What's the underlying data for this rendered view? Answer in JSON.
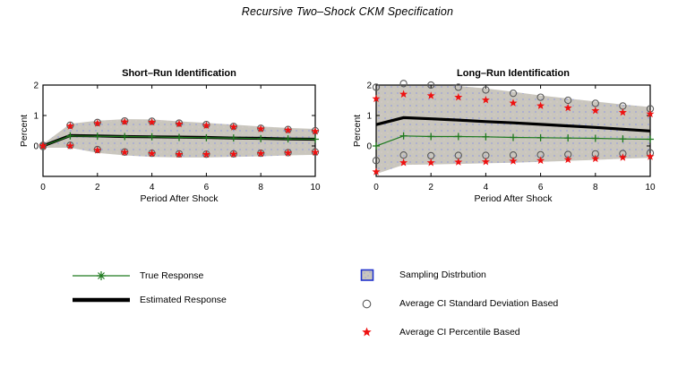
{
  "figure_title": "Recursive Two–Shock CKM Specification",
  "colors": {
    "axis": "#000000",
    "true_response": "#1e7a1e",
    "estimated_response": "#000000",
    "band_fill": "#c9c6bd",
    "band_speckle": "#9aa0dc",
    "band_speckle2": "#d6c9cf",
    "ci_sd_circle": "#5a5a5a",
    "ci_pct_star": "#ee1111",
    "legend_patch_border": "#2233cc"
  },
  "chart_data": [
    {
      "type": "line",
      "title": "Short–Run Identification",
      "xlabel": "Period After Shock",
      "ylabel": "Percent",
      "xlim": [
        0,
        10
      ],
      "ylim": [
        -1,
        2
      ],
      "xticks": [
        0,
        2,
        4,
        6,
        8,
        10
      ],
      "yticks": [
        0,
        1,
        2
      ],
      "grid": false,
      "x": [
        0,
        1,
        2,
        3,
        4,
        5,
        6,
        7,
        8,
        9,
        10
      ],
      "band": {
        "label": "Sampling Distrbution",
        "upper": [
          0.06,
          0.73,
          0.83,
          0.88,
          0.87,
          0.81,
          0.76,
          0.7,
          0.64,
          0.59,
          0.56
        ],
        "lower": [
          -0.06,
          -0.06,
          -0.23,
          -0.31,
          -0.36,
          -0.38,
          -0.38,
          -0.36,
          -0.34,
          -0.31,
          -0.29
        ]
      },
      "series": [
        {
          "name": "True Response",
          "style": "green-line-plus",
          "values": [
            0,
            0.33,
            0.32,
            0.31,
            0.3,
            0.28,
            0.27,
            0.26,
            0.24,
            0.23,
            0.22
          ]
        },
        {
          "name": "Estimated Response",
          "style": "thick-black-line",
          "values": [
            0,
            0.34,
            0.33,
            0.31,
            0.3,
            0.29,
            0.28,
            0.26,
            0.25,
            0.23,
            0.22
          ]
        },
        {
          "name": "Average CI Standard Deviation Based",
          "style": "open-circles",
          "upper": [
            0.02,
            0.68,
            0.77,
            0.82,
            0.81,
            0.75,
            0.7,
            0.64,
            0.58,
            0.54,
            0.5
          ],
          "lower": [
            -0.02,
            0.02,
            -0.12,
            -0.2,
            -0.24,
            -0.26,
            -0.27,
            -0.26,
            -0.24,
            -0.22,
            -0.2
          ]
        },
        {
          "name": "Average CI Percentile Based",
          "style": "red-stars",
          "upper": [
            0.0,
            0.65,
            0.74,
            0.79,
            0.78,
            0.72,
            0.67,
            0.62,
            0.56,
            0.52,
            0.48
          ],
          "lower": [
            0.0,
            0.0,
            -0.14,
            -0.21,
            -0.25,
            -0.28,
            -0.28,
            -0.27,
            -0.25,
            -0.23,
            -0.21
          ]
        }
      ]
    },
    {
      "type": "line",
      "title": "Long–Run Identification",
      "xlabel": "Period After Shock",
      "ylabel": "Percent",
      "xlim": [
        0,
        10
      ],
      "ylim": [
        -1,
        2
      ],
      "xticks": [
        0,
        2,
        4,
        6,
        8,
        10
      ],
      "yticks": [
        0,
        1,
        2
      ],
      "grid": false,
      "x": [
        0,
        1,
        2,
        3,
        4,
        5,
        6,
        7,
        8,
        9,
        10
      ],
      "band": {
        "label": "Sampling Distrbution",
        "upper": [
          1.97,
          2.08,
          2.03,
          1.97,
          1.89,
          1.78,
          1.66,
          1.56,
          1.46,
          1.36,
          1.28
        ],
        "lower": [
          -0.92,
          -0.62,
          -0.61,
          -0.59,
          -0.57,
          -0.55,
          -0.52,
          -0.49,
          -0.46,
          -0.42,
          -0.39
        ]
      },
      "series": [
        {
          "name": "True Response",
          "style": "green-line-plus",
          "values": [
            0,
            0.33,
            0.31,
            0.31,
            0.3,
            0.28,
            0.27,
            0.26,
            0.25,
            0.23,
            0.22
          ]
        },
        {
          "name": "Estimated Response",
          "style": "thick-black-line",
          "values": [
            0.7,
            0.93,
            0.89,
            0.85,
            0.8,
            0.76,
            0.71,
            0.66,
            0.61,
            0.55,
            0.49
          ]
        },
        {
          "name": "Average CI Standard Deviation Based",
          "style": "open-circles",
          "upper": [
            1.93,
            2.05,
            2.0,
            1.93,
            1.84,
            1.73,
            1.6,
            1.5,
            1.4,
            1.31,
            1.22
          ],
          "lower": [
            -0.48,
            -0.3,
            -0.32,
            -0.31,
            -0.31,
            -0.3,
            -0.29,
            -0.28,
            -0.26,
            -0.25,
            -0.23
          ]
        },
        {
          "name": "Average CI Percentile Based",
          "style": "red-stars",
          "upper": [
            1.55,
            1.7,
            1.65,
            1.6,
            1.51,
            1.41,
            1.32,
            1.25,
            1.16,
            1.1,
            1.05
          ],
          "lower": [
            -0.85,
            -0.55,
            -0.55,
            -0.53,
            -0.52,
            -0.5,
            -0.48,
            -0.45,
            -0.42,
            -0.38,
            -0.35
          ]
        }
      ]
    }
  ],
  "legend_left": {
    "items": [
      {
        "label": "True Response",
        "marker": "green-line-asterisk"
      },
      {
        "label": "Estimated Response",
        "marker": "thick-black-line"
      }
    ]
  },
  "legend_right": {
    "items": [
      {
        "label": "Sampling Distrbution",
        "marker": "shaded-patch"
      },
      {
        "label": "Average CI Standard Deviation Based",
        "marker": "open-circle"
      },
      {
        "label": "Average CI Percentile Based",
        "marker": "red-star"
      }
    ]
  }
}
